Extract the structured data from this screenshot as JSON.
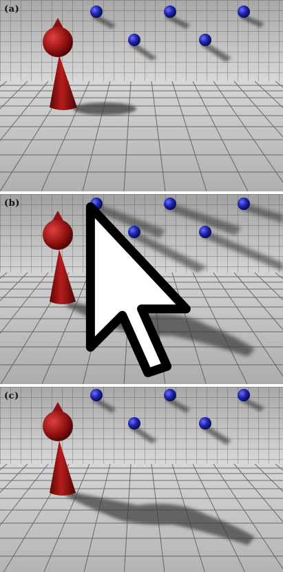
{
  "panels": [
    {
      "label": "(a)"
    },
    {
      "label": "(b)"
    },
    {
      "label": "(c)"
    }
  ],
  "colors": {
    "wall": "#c8c8c8",
    "floor": "#bdbdbd",
    "grid": "#4d4d4d",
    "cone": "#8e1010",
    "sphere": "#1a20a0",
    "shadow": "#4a4a4a"
  }
}
